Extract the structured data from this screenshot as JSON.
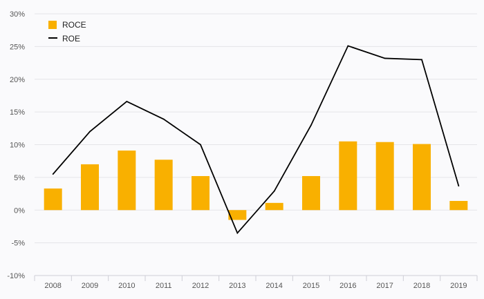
{
  "chart_data": {
    "type": "bar",
    "categories": [
      "2008",
      "2009",
      "2010",
      "2011",
      "2012",
      "2013",
      "2014",
      "2015",
      "2016",
      "2017",
      "2018",
      "2019"
    ],
    "series": [
      {
        "name": "ROCE",
        "kind": "bar",
        "color": "#f9b000",
        "values": [
          3.3,
          7.0,
          9.1,
          7.7,
          5.2,
          -1.5,
          1.1,
          5.2,
          10.5,
          10.4,
          10.1,
          1.4
        ]
      },
      {
        "name": "ROE",
        "kind": "line",
        "color": "#000000",
        "values": [
          5.5,
          12.0,
          16.6,
          13.9,
          10.0,
          -3.5,
          2.9,
          13.0,
          25.1,
          23.2,
          23.0,
          3.7
        ]
      }
    ],
    "ylim": [
      -10,
      30
    ],
    "yticks": [
      -10,
      -5,
      0,
      5,
      10,
      15,
      20,
      25,
      30
    ],
    "ytick_labels": [
      "-10%",
      "-5%",
      "0%",
      "5%",
      "10%",
      "15%",
      "20%",
      "25%",
      "30%"
    ],
    "grid": true,
    "legend_position": "top-left",
    "legend": [
      {
        "label": "ROCE",
        "marker": "square",
        "color": "#f9b000"
      },
      {
        "label": "ROE",
        "marker": "line",
        "color": "#000000"
      }
    ]
  }
}
